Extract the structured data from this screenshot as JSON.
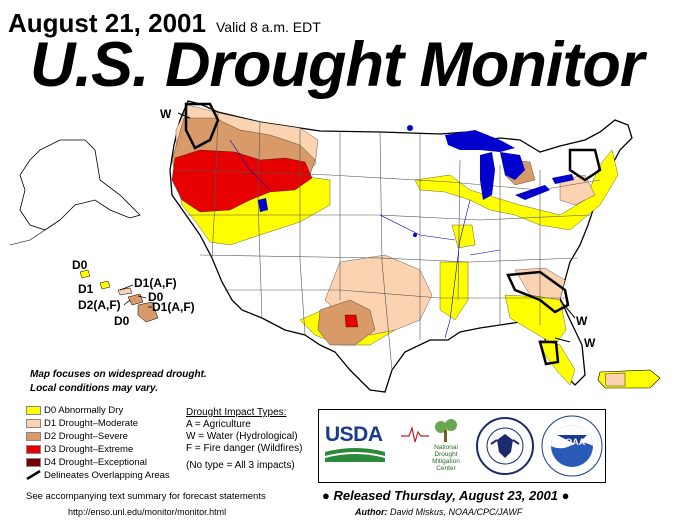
{
  "header": {
    "date": "August 21, 2001",
    "valid": "Valid 8 a.m. EDT",
    "title": "U.S. Drought Monitor"
  },
  "map_labels": {
    "w_northwest": "W",
    "w_southeast_1": "W",
    "w_southeast_2": "W",
    "hawaii_d0_top": "D0",
    "hawaii_d1": "D1",
    "hawaii_d1af": "D1(A,F)",
    "hawaii_d0_mid": "D0",
    "hawaii_d2af": "D2(A,F)",
    "hawaii_d1af_2": "D1(A,F)",
    "hawaii_d0_bottom": "D0"
  },
  "note": {
    "line1": "Map focuses on widespread drought.",
    "line2": "Local conditions may vary."
  },
  "legend": {
    "items": [
      {
        "label": "D0 Abnormally Dry",
        "color": "#ffff00"
      },
      {
        "label": "D1 Drought–Moderate",
        "color": "#fcd3b0"
      },
      {
        "label": "D2 Drought–Severe",
        "color": "#d89a68"
      },
      {
        "label": "D3 Drought–Extreme",
        "color": "#e60000"
      },
      {
        "label": "D4 Drought–Exceptional",
        "color": "#730000"
      }
    ],
    "overlap_label": "Delineates Overlapping Areas"
  },
  "impacts": {
    "heading": "Drought Impact Types:",
    "a": "A = Agriculture",
    "w": "W = Water (Hydrological)",
    "f": "F = Fire danger (Wildfires)",
    "none": "(No type = All 3 impacts)"
  },
  "logos": {
    "usda": "USDA",
    "ndmc_line1": "National",
    "ndmc_line2": "Drought",
    "ndmc_line3": "Mitigation",
    "ndmc_line4": "Center",
    "noaa": "NOAA"
  },
  "footer": {
    "see_text": "See accompanying text summary for forecast statements",
    "url": "http://enso.unl.edu/monitor/monitor.html",
    "released": "Released Thursday, August 23, 2001",
    "author_label": "Author:",
    "author": "David Miskus, NOAA/CPC/JAWF"
  },
  "colors": {
    "d0": "#ffff00",
    "d1": "#fcd3b0",
    "d2": "#d89a68",
    "d3": "#e60000",
    "d4": "#730000",
    "water": "#0000cc"
  }
}
